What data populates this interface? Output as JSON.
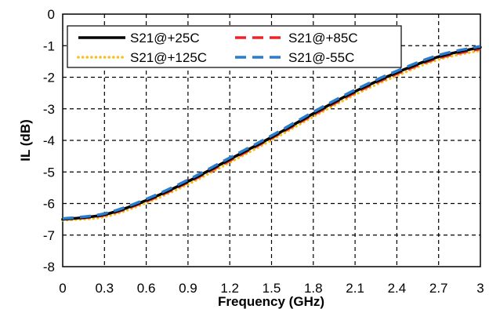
{
  "chart_data": {
    "type": "line",
    "title": "",
    "xlabel": "Frequency (GHz)",
    "ylabel": "IL (dB)",
    "xlim": [
      0,
      3
    ],
    "ylim": [
      -8,
      0
    ],
    "x_ticks": [
      0,
      0.3,
      0.6,
      0.9,
      1.2,
      1.5,
      1.8,
      2.1,
      2.4,
      2.7,
      3
    ],
    "x_tick_labels": [
      "0",
      "0.3",
      "0.6",
      "0.9",
      "1.2",
      "1.5",
      "1.8",
      "2.1",
      "2.4",
      "2.7",
      "3"
    ],
    "y_ticks": [
      0,
      -1,
      -2,
      -3,
      -4,
      -5,
      -6,
      -7,
      -8
    ],
    "y_tick_labels": [
      "0",
      "-1",
      "-2",
      "-3",
      "-4",
      "-5",
      "-6",
      "-7",
      "-8"
    ],
    "grid": true,
    "legend_position": "top",
    "series": [
      {
        "name": "S21@+25C",
        "color": "#000000",
        "style": "solid",
        "x": [
          0,
          0.3,
          0.6,
          0.9,
          1.2,
          1.5,
          1.8,
          2.1,
          2.4,
          2.7,
          3.0
        ],
        "y": [
          -6.5,
          -6.35,
          -5.9,
          -5.3,
          -4.6,
          -3.9,
          -3.15,
          -2.45,
          -1.85,
          -1.35,
          -1.05
        ]
      },
      {
        "name": "S21@+85C",
        "color": "#e8262a",
        "style": "dashed",
        "x": [
          0,
          0.3,
          0.6,
          0.9,
          1.2,
          1.5,
          1.8,
          2.1,
          2.4,
          2.7,
          3.0
        ],
        "y": [
          -6.5,
          -6.37,
          -5.93,
          -5.33,
          -4.64,
          -3.93,
          -3.19,
          -2.49,
          -1.89,
          -1.39,
          -1.1
        ]
      },
      {
        "name": "S21@+125C",
        "color": "#f5c11c",
        "style": "dotted",
        "x": [
          0,
          0.3,
          0.6,
          0.9,
          1.2,
          1.5,
          1.8,
          2.1,
          2.4,
          2.7,
          3.0
        ],
        "y": [
          -6.53,
          -6.42,
          -5.98,
          -5.39,
          -4.7,
          -3.99,
          -3.25,
          -2.55,
          -1.95,
          -1.44,
          -1.15
        ]
      },
      {
        "name": "S21@-55C",
        "color": "#2a7ccc",
        "style": "dashed",
        "x": [
          0,
          0.3,
          0.6,
          0.9,
          1.2,
          1.5,
          1.8,
          2.1,
          2.4,
          2.7,
          3.0
        ],
        "y": [
          -6.48,
          -6.32,
          -5.86,
          -5.25,
          -4.55,
          -3.85,
          -3.1,
          -2.4,
          -1.8,
          -1.3,
          -1.02
        ]
      }
    ]
  }
}
